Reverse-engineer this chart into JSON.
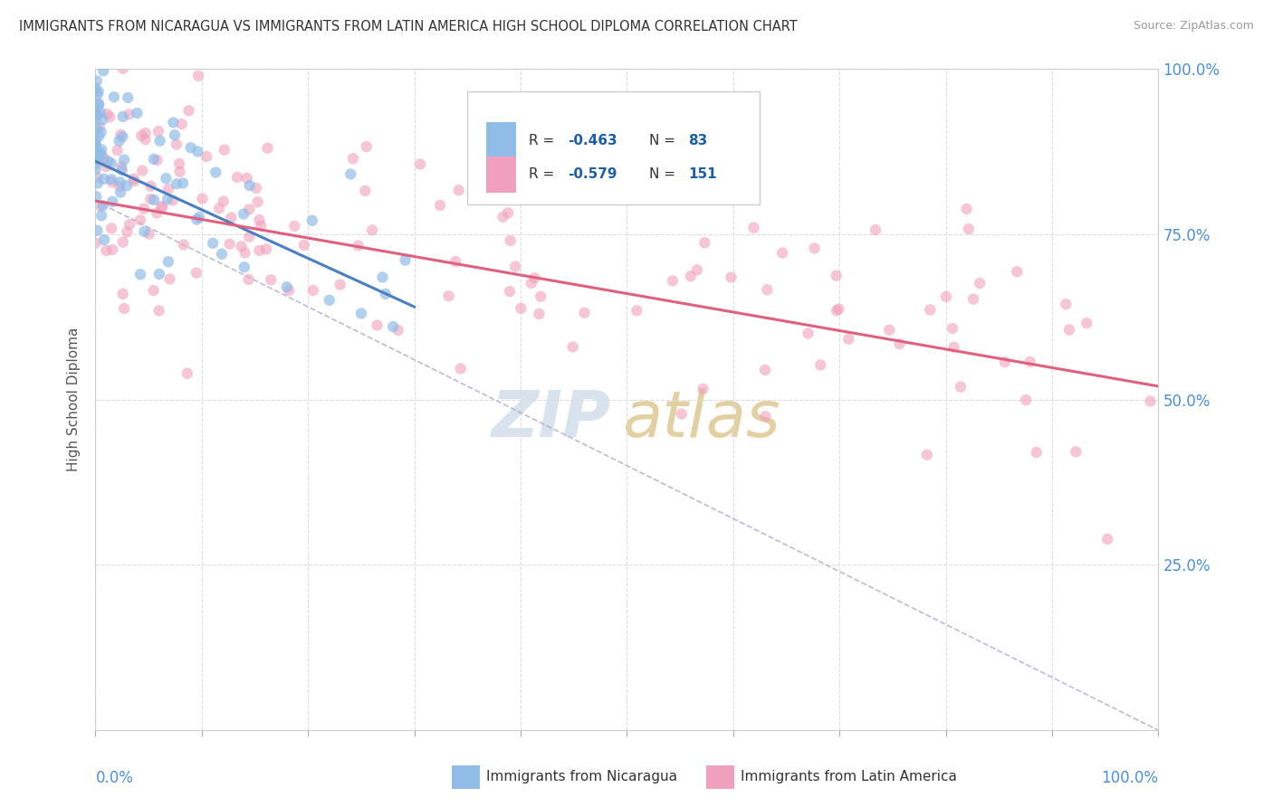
{
  "title": "IMMIGRANTS FROM NICARAGUA VS IMMIGRANTS FROM LATIN AMERICA HIGH SCHOOL DIPLOMA CORRELATION CHART",
  "source": "Source: ZipAtlas.com",
  "ylabel": "High School Diploma",
  "ytick_values": [
    25,
    50,
    75,
    100
  ],
  "ytick_labels": [
    "25.0%",
    "50.0%",
    "75.0%",
    "100.0%"
  ],
  "xmin": 0,
  "xmax": 100,
  "ymin": 0,
  "ymax": 100,
  "bg_color": "#ffffff",
  "grid_color": "#dddddd",
  "grid_style": "--",
  "trend_blue_color": "#4a7fc1",
  "trend_pink_color": "#e06080",
  "trend_dash_color": "#aaaacc",
  "scatter_blue": "#90bce8",
  "scatter_pink": "#f0a0bc",
  "title_color": "#333333",
  "source_color": "#999999",
  "axis_label_color": "#4a90d9",
  "legend_R_color": "#1a5fa8",
  "nicaragua_trend_x": [
    0,
    30
  ],
  "nicaragua_trend_y": [
    86,
    64
  ],
  "latinamerica_trend_x": [
    0,
    100
  ],
  "latinamerica_trend_y": [
    80,
    52
  ],
  "dashed_trend_x": [
    0,
    100
  ],
  "dashed_trend_y": [
    80,
    0
  ]
}
